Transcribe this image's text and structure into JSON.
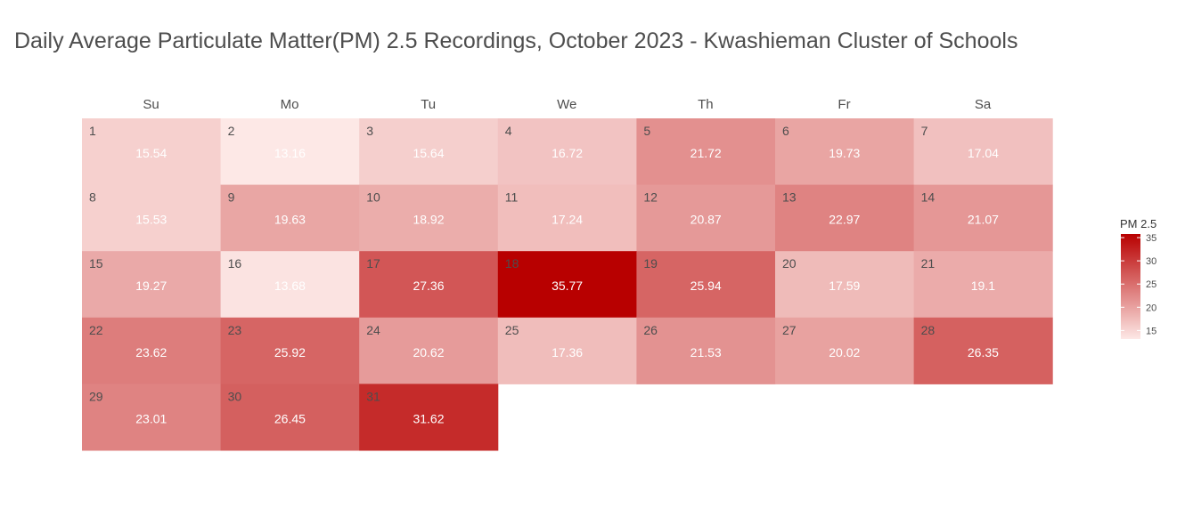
{
  "title": "Daily Average Particulate Matter(PM) 2.5 Recordings, October 2023 - Kwashieman Cluster of Schools",
  "chart_data": {
    "type": "heatmap",
    "subtype": "calendar",
    "title": "Daily Average Particulate Matter(PM) 2.5 Recordings, October 2023 - Kwashieman Cluster of Schools",
    "weekdays": [
      "Su",
      "Mo",
      "Tu",
      "We",
      "Th",
      "Fr",
      "Sa"
    ],
    "first_weekday_index": 0,
    "days": [
      1,
      2,
      3,
      4,
      5,
      6,
      7,
      8,
      9,
      10,
      11,
      12,
      13,
      14,
      15,
      16,
      17,
      18,
      19,
      20,
      21,
      22,
      23,
      24,
      25,
      26,
      27,
      28,
      29,
      30,
      31
    ],
    "values": [
      15.54,
      13.16,
      15.64,
      16.72,
      21.72,
      19.73,
      17.04,
      15.53,
      19.63,
      18.92,
      17.24,
      20.87,
      22.97,
      21.07,
      19.27,
      13.68,
      27.36,
      35.77,
      25.94,
      17.59,
      19.1,
      23.62,
      25.92,
      20.62,
      17.36,
      21.53,
      20.02,
      26.35,
      23.01,
      26.45,
      31.62
    ],
    "value_labels": [
      "15.54",
      "13.16",
      "15.64",
      "16.72",
      "21.72",
      "19.73",
      "17.04",
      "15.53",
      "19.63",
      "18.92",
      "17.24",
      "20.87",
      "22.97",
      "21.07",
      "19.27",
      "13.68",
      "27.36",
      "35.77",
      "25.94",
      "17.59",
      "19.1",
      "23.62",
      "25.92",
      "20.62",
      "17.36",
      "21.53",
      "20.02",
      "26.35",
      "23.01",
      "26.45",
      "31.62"
    ],
    "legend": {
      "title": "PM 2.5",
      "placement": "right",
      "ticks": [
        15,
        20,
        25,
        30,
        35
      ],
      "range": [
        13.16,
        35.77
      ]
    },
    "colors": {
      "low": "#fde8e6",
      "high": "#b80000"
    },
    "grid": false
  }
}
